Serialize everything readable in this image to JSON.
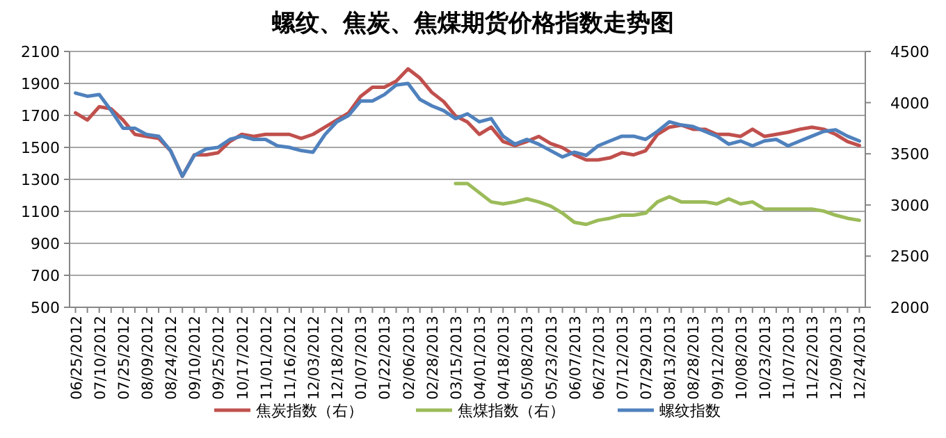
{
  "chart_data": {
    "type": "line",
    "title": "螺纹、焦炭、焦煤期货价格指数走势图",
    "categories": [
      "06/25/2012",
      null,
      "07/10/2012",
      null,
      "07/25/2012",
      null,
      "08/09/2012",
      null,
      "08/24/2012",
      null,
      "09/10/2012",
      null,
      "09/25/2012",
      null,
      "10/17/2012",
      null,
      "11/01/2012",
      null,
      "11/16/2012",
      null,
      "12/03/2012",
      null,
      "12/18/2012",
      null,
      "01/07/2013",
      null,
      "01/22/2013",
      null,
      "02/06/2013",
      null,
      "02/28/2013",
      null,
      "03/15/2013",
      null,
      "04/01/2013",
      null,
      "04/18/2013",
      null,
      "05/08/2013",
      null,
      "05/23/2013",
      null,
      "06/07/2013",
      null,
      "06/27/2013",
      null,
      "07/12/2013",
      null,
      "07/29/2013",
      null,
      "08/13/2013",
      null,
      "08/28/2013",
      null,
      "09/12/2013",
      null,
      "10/08/2013",
      null,
      "10/23/2013",
      null,
      "11/07/2013",
      null,
      "11/22/2013",
      null,
      "12/09/2013",
      null,
      "12/24/2013"
    ],
    "series": [
      {
        "name": "焦炭指数（右）",
        "color": "#c0504d",
        "axis": "y2",
        "values": [
          3900,
          3830,
          3960,
          3940,
          3830,
          3690,
          3670,
          3650,
          3530,
          3280,
          3490,
          3490,
          3510,
          3620,
          3690,
          3670,
          3690,
          3690,
          3690,
          3650,
          3690,
          3760,
          3830,
          3900,
          4060,
          4150,
          4150,
          4210,
          4330,
          4240,
          4100,
          4010,
          3870,
          3810,
          3690,
          3760,
          3620,
          3580,
          3620,
          3670,
          3600,
          3560,
          3490,
          3440,
          3440,
          3460,
          3510,
          3490,
          3530,
          3690,
          3760,
          3780,
          3740,
          3740,
          3690,
          3690,
          3670,
          3740,
          3670,
          3690,
          3710,
          3740,
          3760,
          3740,
          3690,
          3620,
          3580
        ]
      },
      {
        "name": "焦煤指数（右）",
        "color": "#9bbb59",
        "axis": "y2",
        "values": [
          null,
          null,
          null,
          null,
          null,
          null,
          null,
          null,
          null,
          null,
          null,
          null,
          null,
          null,
          null,
          null,
          null,
          null,
          null,
          null,
          null,
          null,
          null,
          null,
          null,
          null,
          null,
          null,
          null,
          null,
          null,
          null,
          3210,
          3210,
          3120,
          3030,
          3010,
          3030,
          3060,
          3030,
          2990,
          2920,
          2830,
          2810,
          2850,
          2870,
          2900,
          2900,
          2920,
          3030,
          3080,
          3030,
          3030,
          3030,
          3010,
          3060,
          3010,
          3030,
          2960,
          2960,
          2960,
          2960,
          2960,
          2940,
          2900,
          2870,
          2850
        ]
      },
      {
        "name": "螺纹指数",
        "color": "#4f81bd",
        "values": [
          1840,
          1820,
          1830,
          1730,
          1620,
          1620,
          1580,
          1570,
          1480,
          1320,
          1450,
          1490,
          1500,
          1550,
          1570,
          1550,
          1550,
          1510,
          1500,
          1480,
          1470,
          1580,
          1660,
          1700,
          1790,
          1790,
          1830,
          1890,
          1900,
          1800,
          1760,
          1730,
          1680,
          1710,
          1660,
          1680,
          1570,
          1520,
          1550,
          1520,
          1480,
          1440,
          1470,
          1450,
          1510,
          1540,
          1570,
          1570,
          1550,
          1600,
          1660,
          1640,
          1630,
          1600,
          1570,
          1520,
          1540,
          1510,
          1540,
          1550,
          1510,
          1540,
          1570,
          1600,
          1610,
          1570,
          1540
        ]
      }
    ],
    "ylim": [
      500,
      2100
    ],
    "yticks": [
      500,
      700,
      900,
      1100,
      1300,
      1500,
      1700,
      1900,
      2100
    ],
    "y2lim": [
      2000,
      4500
    ],
    "y2ticks": [
      2000,
      2500,
      3000,
      3500,
      4000,
      4500
    ],
    "grid": "y",
    "legend": "bottom",
    "marker": "none",
    "line_style": "solid"
  }
}
